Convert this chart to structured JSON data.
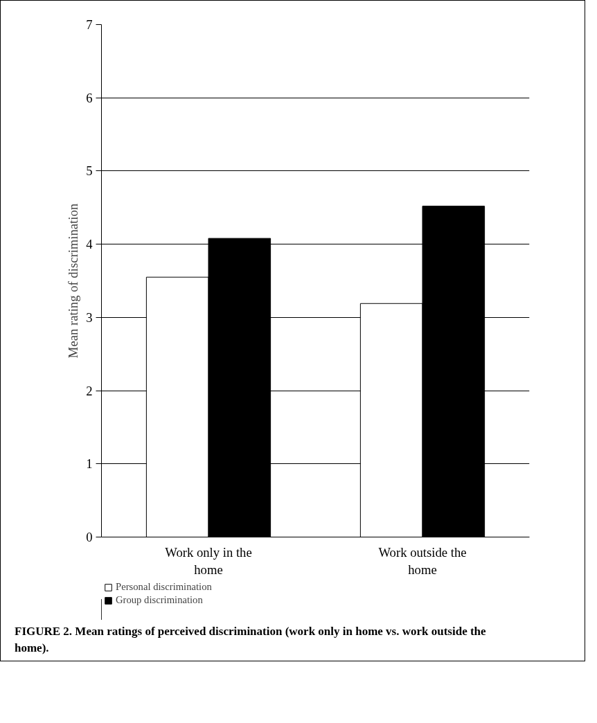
{
  "chart_data": {
    "type": "bar",
    "title": "FIGURE 2. Mean ratings of perceived discrimination (work only in home vs. work outside the home).",
    "ylabel": "Mean rating of discrimination",
    "categories": [
      "Work only in the\nhome",
      "Work outside the\nhome"
    ],
    "series": [
      {
        "name": "Personal discrimination",
        "color": "#ffffff",
        "values": [
          3.55,
          3.19
        ]
      },
      {
        "name": "Group discrimination",
        "color": "#000000",
        "values": [
          4.08,
          4.52
        ]
      }
    ],
    "ylim": [
      0,
      7
    ],
    "yticks": [
      0,
      1,
      2,
      3,
      4,
      5,
      6,
      7
    ],
    "grid": "y",
    "legend": "bottom left"
  }
}
